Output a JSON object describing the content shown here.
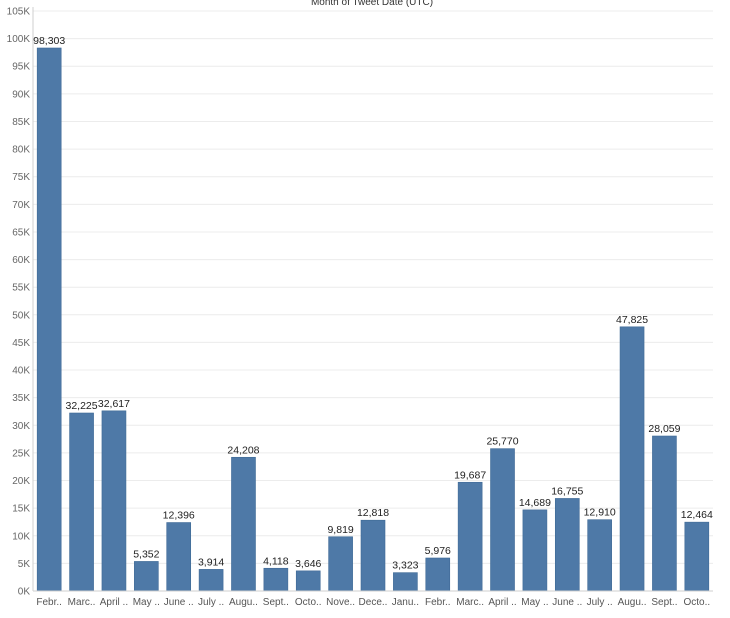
{
  "chart_data": {
    "type": "bar",
    "title": "Month of Tweet Date (UTC)",
    "xlabel": "",
    "ylabel": "",
    "ylim": [
      0,
      105000
    ],
    "yticks": [
      0,
      5000,
      10000,
      15000,
      20000,
      25000,
      30000,
      35000,
      40000,
      45000,
      50000,
      55000,
      60000,
      65000,
      70000,
      75000,
      80000,
      85000,
      90000,
      95000,
      100000,
      105000
    ],
    "ytick_labels": [
      "0K",
      "5K",
      "10K",
      "15K",
      "20K",
      "25K",
      "30K",
      "35K",
      "40K",
      "45K",
      "50K",
      "55K",
      "60K",
      "65K",
      "70K",
      "75K",
      "80K",
      "85K",
      "90K",
      "95K",
      "100K",
      "105K"
    ],
    "grid": true,
    "categories": [
      "Febr..",
      "Marc..",
      "April ..",
      "May ..",
      "June ..",
      "July ..",
      "Augu..",
      "Sept..",
      "Octo..",
      "Nove..",
      "Dece..",
      "Janu..",
      "Febr..",
      "Marc..",
      "April ..",
      "May ..",
      "June ..",
      "July ..",
      "Augu..",
      "Sept..",
      "Octo.."
    ],
    "values": [
      98303,
      32225,
      32617,
      5352,
      12396,
      3914,
      24208,
      4118,
      3646,
      9819,
      12818,
      3323,
      5976,
      19687,
      25770,
      14689,
      16755,
      12910,
      47825,
      28059,
      12464
    ],
    "data_labels": [
      "98,303",
      "32,225",
      "32,617",
      "5,352",
      "12,396",
      "3,914",
      "24,208",
      "4,118",
      "3,646",
      "9,819",
      "12,818",
      "3,323",
      "5,976",
      "19,687",
      "25,770",
      "14,689",
      "16,755",
      "12,910",
      "47,825",
      "28,059",
      "12,464"
    ],
    "colors": {
      "bar": "#4e79a7",
      "bar_edge": "#3f6a96",
      "grid": "#ececec",
      "axis": "#cfcfcf"
    }
  }
}
